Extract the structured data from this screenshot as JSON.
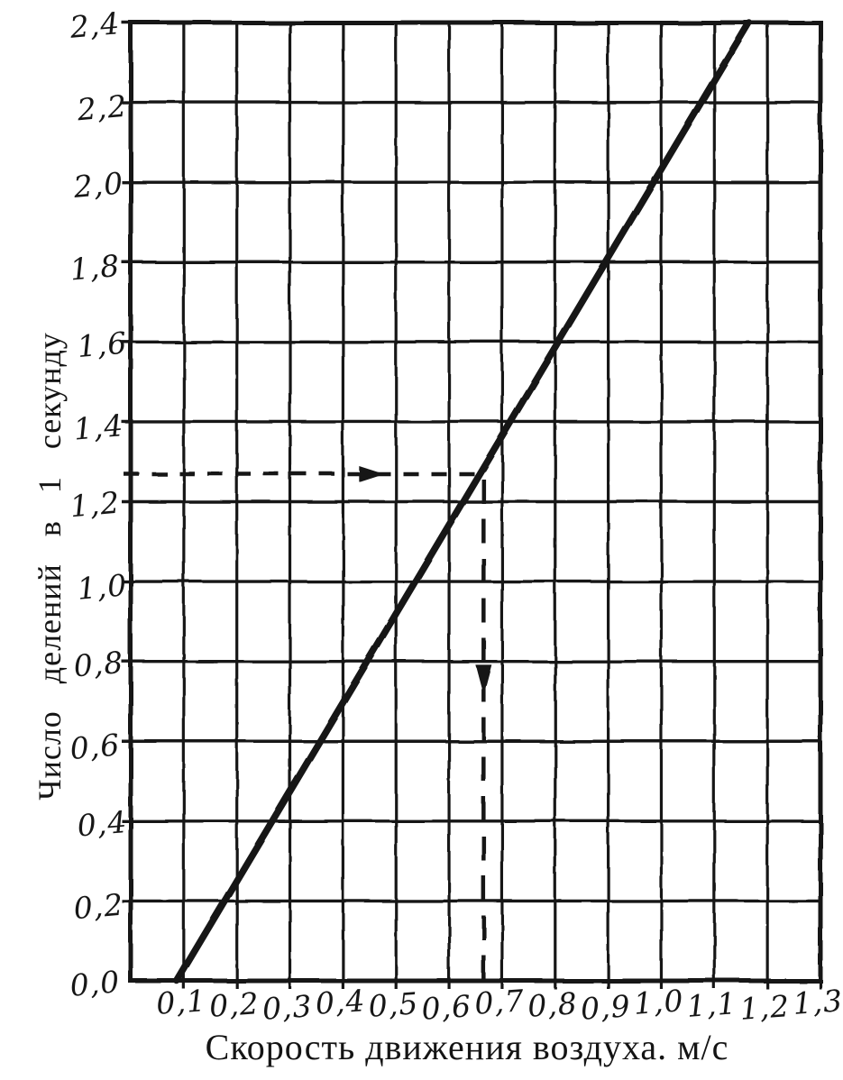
{
  "page": {
    "background_color": "#ffffff",
    "ink_color": "#161616",
    "description_kind": "scanned-calibration-graph"
  },
  "chart_data": {
    "type": "line",
    "title": "",
    "xlabel": "Скорость движения воздуха. м/с",
    "ylabel": "Число делений в 1 секунду",
    "xlim": [
      0,
      1.3
    ],
    "ylim": [
      0,
      2.4
    ],
    "grid": true,
    "legend": "none",
    "x_ticks": {
      "values": [
        0.1,
        0.2,
        0.3,
        0.4,
        0.5,
        0.6,
        0.7,
        0.8,
        0.9,
        1.0,
        1.1,
        1.2,
        1.3
      ],
      "labels": [
        "0,1",
        "0,2",
        "0,3",
        "0,4",
        "0,5",
        "0,6",
        "0,7",
        "0,8",
        "0,9",
        "1,0",
        "1,1",
        "1,2",
        "1,3"
      ]
    },
    "y_ticks": {
      "values": [
        0.0,
        0.2,
        0.4,
        0.6,
        0.8,
        1.0,
        1.2,
        1.4,
        1.6,
        1.8,
        2.0,
        2.2,
        2.4
      ],
      "labels": [
        "0,0",
        "0,2",
        "0,4",
        "0,6",
        "0,8",
        "1,0",
        "1,2",
        "1,4",
        "1,6",
        "1,8",
        "2,0",
        "2,2",
        "2,4"
      ]
    },
    "series": [
      {
        "name": "calibration-line",
        "points": [
          [
            0.087,
            0.0
          ],
          [
            1.165,
            2.4
          ]
        ]
      }
    ],
    "guides": {
      "horizontal": {
        "y": 1.27,
        "x_from": 0.0,
        "x_to": 0.663,
        "arrow_x": 0.45,
        "direction": "right"
      },
      "vertical": {
        "x": 0.665,
        "y_from": 1.27,
        "y_to": 0.0,
        "arrow_y": 0.76,
        "direction": "down"
      }
    },
    "reading": {
      "x": 0.67,
      "y": 1.27
    }
  }
}
